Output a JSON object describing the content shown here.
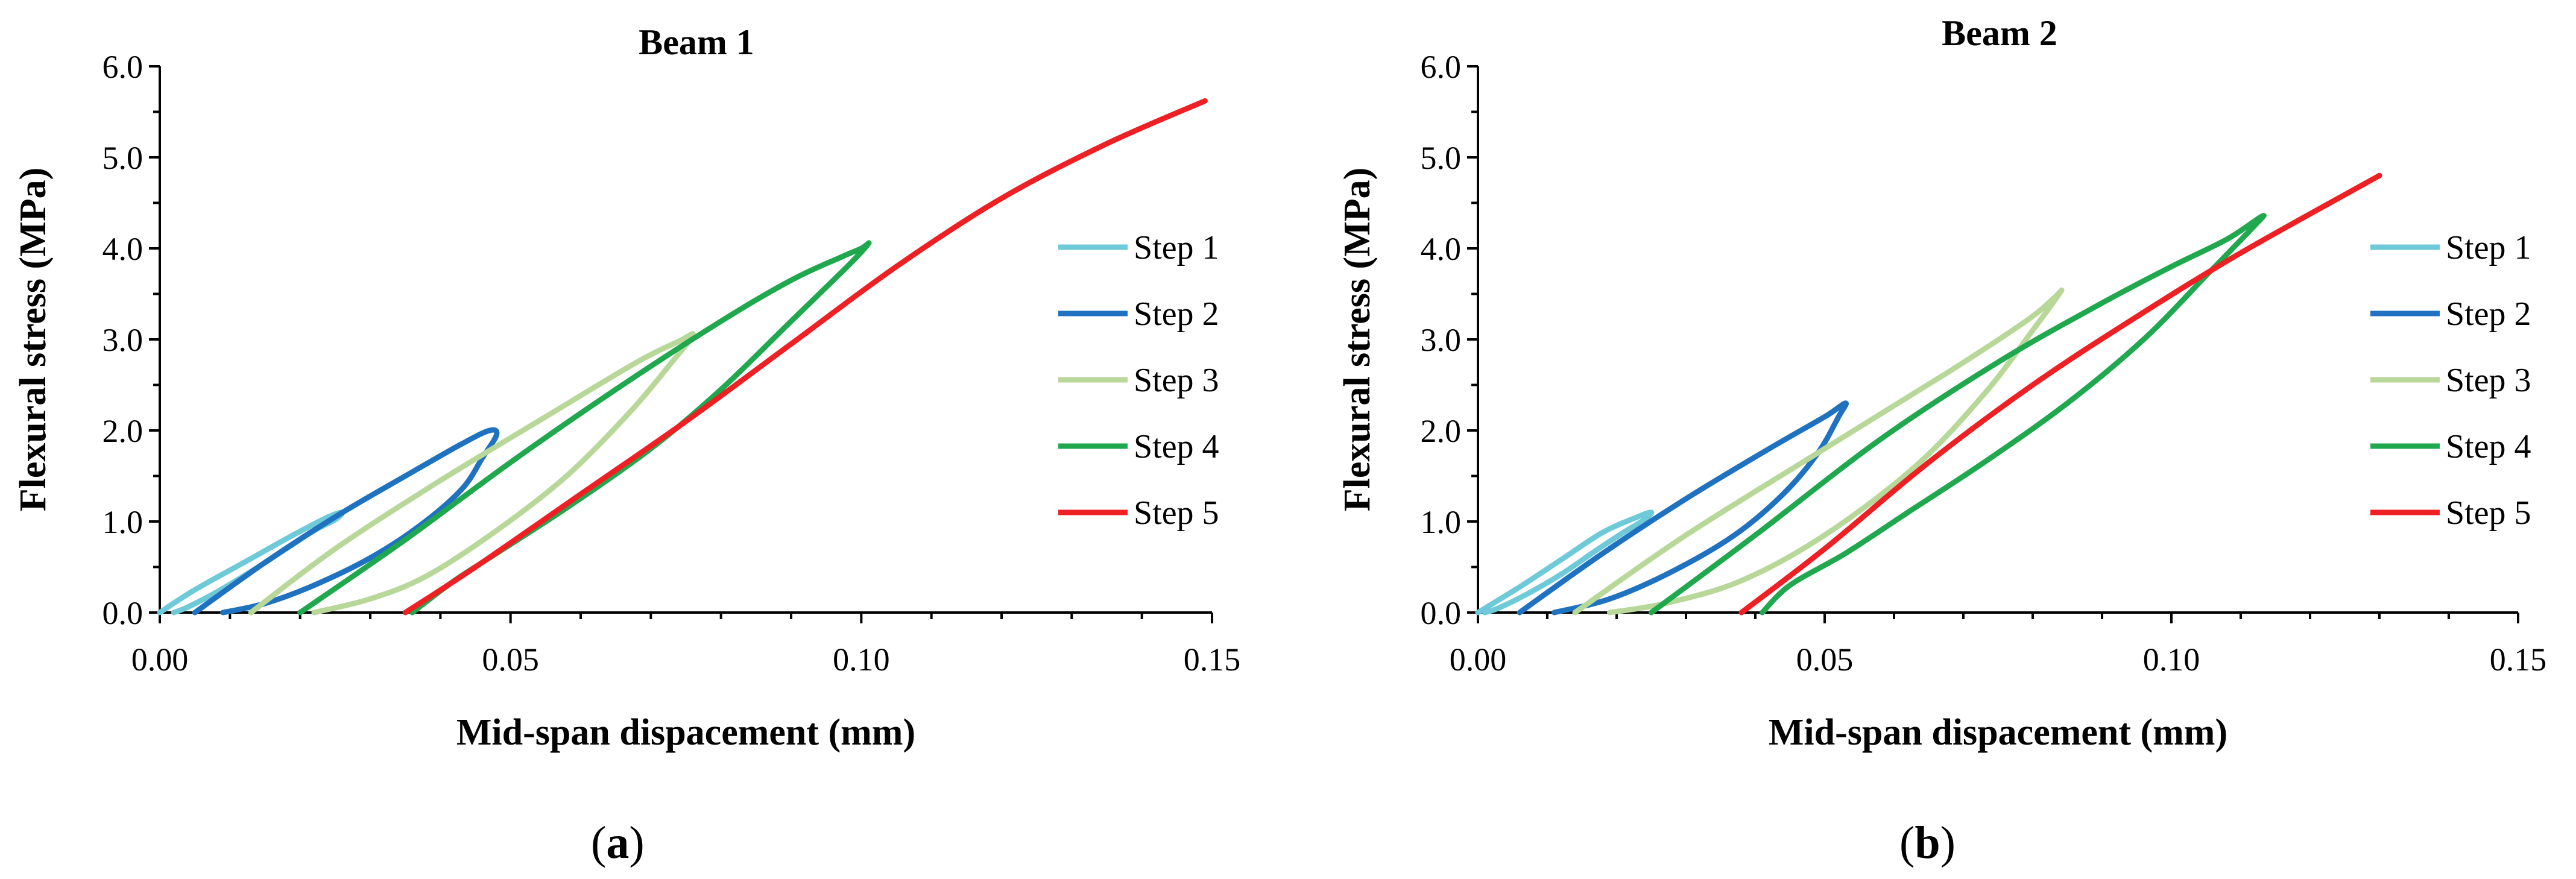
{
  "colors": {
    "step1": "#6ECAD9",
    "step2": "#1F72C0",
    "step3": "#B8D89A",
    "step4": "#1FA84E",
    "step5": "#EE2024",
    "axis": "#000000"
  },
  "subfigure_labels": [
    {
      "open": "(",
      "letter": "a",
      "close": ")"
    },
    {
      "open": "(",
      "letter": "b",
      "close": ")"
    }
  ],
  "chart_data": [
    {
      "type": "line",
      "title": "Beam 1",
      "xlabel": "Mid-span dispacement (mm)",
      "ylabel": "Flexural stress (MPa)",
      "xlim": [
        0,
        0.15
      ],
      "ylim": [
        0,
        6
      ],
      "xticks": [
        "0.00",
        "0.05",
        "0.10",
        "0.15"
      ],
      "yticks": [
        "0.0",
        "1.0",
        "2.0",
        "3.0",
        "4.0",
        "5.0",
        "6.0"
      ],
      "legend_position": "right",
      "series": [
        {
          "name": "Step 1",
          "color_key": "step1",
          "x": [
            0.0,
            0.005,
            0.012,
            0.019,
            0.024,
            0.026,
            0.025,
            0.022,
            0.018,
            0.013,
            0.008,
            0.004,
            0.002
          ],
          "y": [
            0.0,
            0.25,
            0.55,
            0.85,
            1.05,
            1.1,
            1.02,
            0.9,
            0.7,
            0.45,
            0.22,
            0.06,
            0.0
          ]
        },
        {
          "name": "Step 2",
          "color_key": "step2",
          "x": [
            0.005,
            0.015,
            0.025,
            0.035,
            0.043,
            0.047,
            0.048,
            0.046,
            0.043,
            0.037,
            0.03,
            0.022,
            0.015,
            0.009
          ],
          "y": [
            0.0,
            0.55,
            1.05,
            1.5,
            1.85,
            2.0,
            1.95,
            1.7,
            1.35,
            0.95,
            0.6,
            0.3,
            0.1,
            0.0
          ]
        },
        {
          "name": "Step 3",
          "color_key": "step3",
          "x": [
            0.013,
            0.025,
            0.04,
            0.055,
            0.068,
            0.074,
            0.076,
            0.073,
            0.067,
            0.058,
            0.048,
            0.038,
            0.03,
            0.022
          ],
          "y": [
            0.0,
            0.7,
            1.45,
            2.15,
            2.75,
            2.98,
            3.05,
            2.75,
            2.2,
            1.5,
            0.9,
            0.4,
            0.15,
            0.0
          ]
        },
        {
          "name": "Step 4",
          "color_key": "step4",
          "x": [
            0.02,
            0.035,
            0.05,
            0.065,
            0.08,
            0.09,
            0.097,
            0.1,
            0.101,
            0.098,
            0.09,
            0.08,
            0.07,
            0.058,
            0.048,
            0.042,
            0.036
          ],
          "y": [
            0.0,
            0.8,
            1.65,
            2.45,
            3.2,
            3.65,
            3.9,
            4.0,
            4.05,
            3.8,
            3.2,
            2.45,
            1.8,
            1.15,
            0.65,
            0.35,
            0.0
          ]
        },
        {
          "name": "Step 5",
          "color_key": "step5",
          "x": [
            0.035,
            0.045,
            0.06,
            0.075,
            0.09,
            0.105,
            0.12,
            0.135,
            0.149
          ],
          "y": [
            0.0,
            0.5,
            1.3,
            2.1,
            2.95,
            3.8,
            4.55,
            5.15,
            5.62
          ]
        }
      ]
    },
    {
      "type": "line",
      "title": "Beam 2",
      "xlabel": "Mid-span dispacement (mm)",
      "ylabel": "Flexural stress (MPa)",
      "xlim": [
        0,
        0.15
      ],
      "ylim": [
        0,
        6
      ],
      "xticks": [
        "0.00",
        "0.05",
        "0.10",
        "0.15"
      ],
      "yticks": [
        "0.0",
        "1.0",
        "2.0",
        "3.0",
        "4.0",
        "5.0",
        "6.0"
      ],
      "legend_position": "right",
      "series": [
        {
          "name": "Step 1",
          "color_key": "step1",
          "x": [
            0.0,
            0.006,
            0.012,
            0.018,
            0.023,
            0.025,
            0.024,
            0.021,
            0.017,
            0.012,
            0.007,
            0.003,
            0.001
          ],
          "y": [
            0.0,
            0.28,
            0.58,
            0.88,
            1.05,
            1.1,
            1.02,
            0.88,
            0.68,
            0.42,
            0.2,
            0.05,
            0.0
          ]
        },
        {
          "name": "Step 2",
          "color_key": "step2",
          "x": [
            0.006,
            0.018,
            0.03,
            0.042,
            0.05,
            0.053,
            0.052,
            0.049,
            0.044,
            0.037,
            0.028,
            0.019,
            0.011
          ],
          "y": [
            0.0,
            0.65,
            1.25,
            1.8,
            2.15,
            2.3,
            2.15,
            1.75,
            1.3,
            0.85,
            0.45,
            0.15,
            0.0
          ]
        },
        {
          "name": "Step 3",
          "color_key": "step3",
          "x": [
            0.014,
            0.03,
            0.05,
            0.068,
            0.079,
            0.083,
            0.084,
            0.08,
            0.073,
            0.063,
            0.05,
            0.038,
            0.027,
            0.019
          ],
          "y": [
            0.0,
            0.85,
            1.8,
            2.65,
            3.2,
            3.45,
            3.52,
            3.1,
            2.4,
            1.6,
            0.85,
            0.35,
            0.1,
            0.0
          ]
        },
        {
          "name": "Step 4",
          "color_key": "step4",
          "x": [
            0.025,
            0.04,
            0.058,
            0.075,
            0.09,
            0.1,
            0.108,
            0.113,
            0.112,
            0.105,
            0.096,
            0.085,
            0.073,
            0.062,
            0.053,
            0.045,
            0.041
          ],
          "y": [
            0.0,
            0.85,
            1.9,
            2.75,
            3.4,
            3.8,
            4.1,
            4.35,
            4.25,
            3.7,
            3.0,
            2.3,
            1.65,
            1.1,
            0.65,
            0.3,
            0.0
          ]
        },
        {
          "name": "Step 5",
          "color_key": "step5",
          "x": [
            0.038,
            0.05,
            0.065,
            0.08,
            0.095,
            0.11,
            0.13
          ],
          "y": [
            0.0,
            0.7,
            1.65,
            2.5,
            3.25,
            3.95,
            4.8
          ]
        }
      ]
    }
  ]
}
